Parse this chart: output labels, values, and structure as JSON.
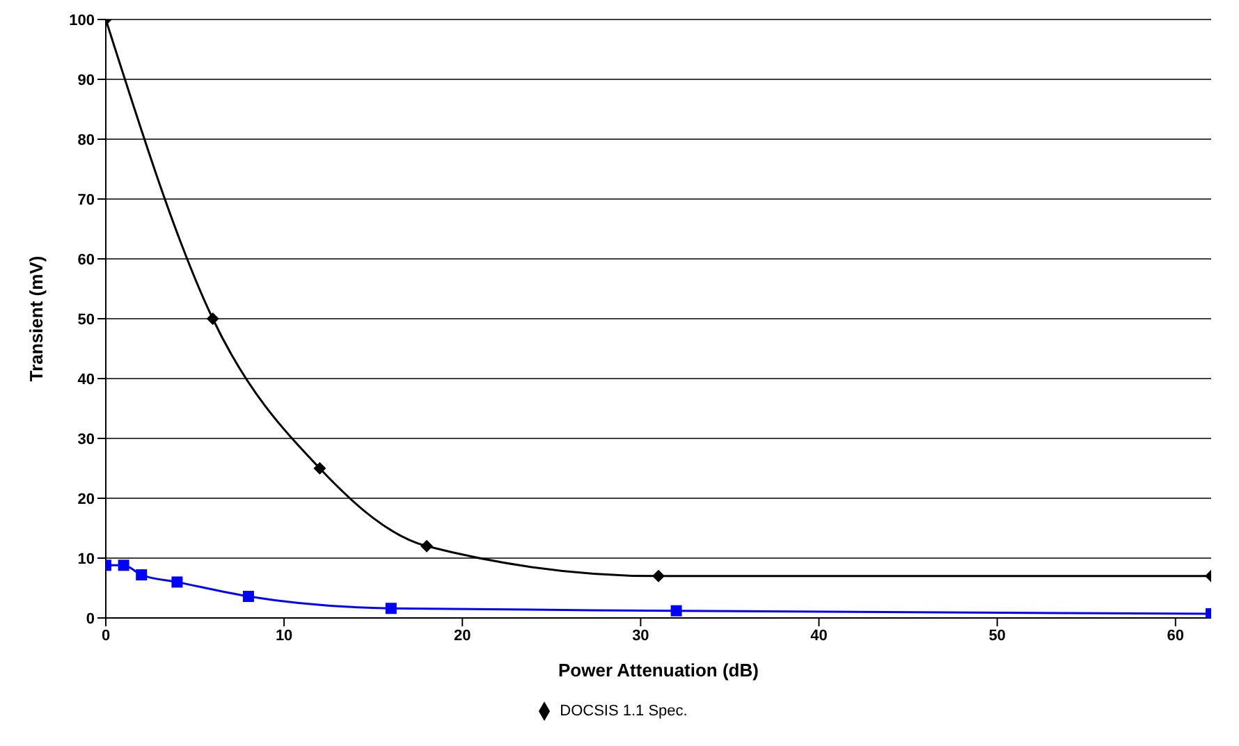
{
  "chart_data": {
    "type": "line",
    "xlabel": "Power Attenuation (dB)",
    "ylabel": "Transient (mV)",
    "xlim": [
      0,
      62
    ],
    "xticks": [
      0,
      10,
      20,
      30,
      40,
      50,
      60
    ],
    "ylim": [
      0,
      100
    ],
    "yticks": [
      0,
      10,
      20,
      30,
      40,
      50,
      60,
      70,
      80,
      90,
      100
    ],
    "grid": "y",
    "legend": "bottom",
    "series": [
      {
        "name": "DOCSIS 1.1 Spec.",
        "color": "#000000",
        "marker": "diamond",
        "x": [
          0,
          6,
          12,
          18,
          31,
          62
        ],
        "values": [
          100,
          50,
          25,
          12,
          7,
          7
        ]
      },
      {
        "color": "#0000ff",
        "marker": "square",
        "x": [
          0,
          1,
          2,
          4,
          8,
          16,
          32,
          62
        ],
        "values": [
          8.8,
          8.8,
          7.2,
          6,
          3.6,
          1.6,
          1.2,
          0.7
        ]
      }
    ]
  }
}
